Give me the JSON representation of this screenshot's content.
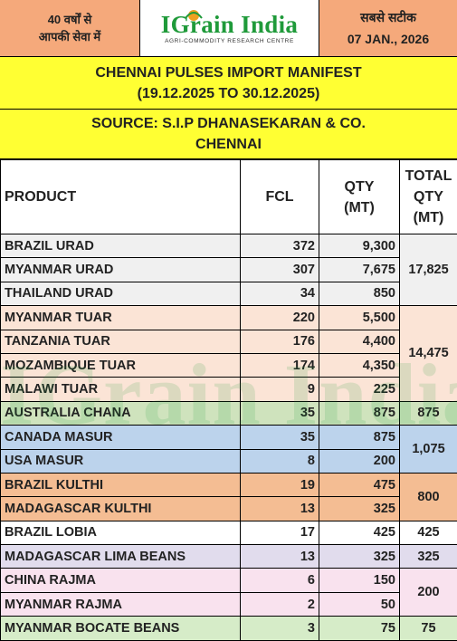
{
  "header": {
    "left_line1": "40 वर्षों से",
    "left_line2": "आपकी सेवा में",
    "logo_text": "IGrain India",
    "logo_sub": "AGRI-COMMODITY RESEARCH CENTRE",
    "right_line1": "सबसे सटीक",
    "right_date": "07 JAN., 2026"
  },
  "title": {
    "line1": "CHENNAI PULSES IMPORT MANIFEST",
    "line2": "(19.12.2025 TO 30.12.2025)"
  },
  "source": {
    "line1": "SOURCE: S.I.P DHANASEKARAN & CO.",
    "line2": "CHENNAI"
  },
  "table": {
    "headers": {
      "product": "PRODUCT",
      "fcl": "FCL",
      "qty_line1": "QTY",
      "qty_line2": "(MT)",
      "total_line1": "TOTAL",
      "total_line2": "QTY",
      "total_line3": "(MT)"
    },
    "rows": [
      {
        "product": "BRAZIL URAD",
        "fcl": "372",
        "qty": "9,300"
      },
      {
        "product": "MYANMAR URAD",
        "fcl": "307",
        "qty": "7,675"
      },
      {
        "product": "THAILAND URAD",
        "fcl": "34",
        "qty": "850"
      },
      {
        "product": "MYANMAR TUAR",
        "fcl": "220",
        "qty": "5,500"
      },
      {
        "product": "TANZANIA TUAR",
        "fcl": "176",
        "qty": "4,400"
      },
      {
        "product": "MOZAMBIQUE TUAR",
        "fcl": "174",
        "qty": "4,350"
      },
      {
        "product": "MALAWI TUAR",
        "fcl": "9",
        "qty": "225"
      },
      {
        "product": "AUSTRALIA CHANA",
        "fcl": "35",
        "qty": "875"
      },
      {
        "product": "CANADA MASUR",
        "fcl": "35",
        "qty": "875"
      },
      {
        "product": "USA MASUR",
        "fcl": "8",
        "qty": "200"
      },
      {
        "product": "BRAZIL KULTHI",
        "fcl": "19",
        "qty": "475"
      },
      {
        "product": "MADAGASCAR KULTHI",
        "fcl": "13",
        "qty": "325"
      },
      {
        "product": "BRAZIL LOBIA",
        "fcl": "17",
        "qty": "425"
      },
      {
        "product": "MADAGASCAR LIMA BEANS",
        "fcl": "13",
        "qty": "325"
      },
      {
        "product": "CHINA RAJMA",
        "fcl": "6",
        "qty": "150"
      },
      {
        "product": "MYANMAR RAJMA",
        "fcl": "2",
        "qty": "50"
      },
      {
        "product": "MYANMAR BOCATE BEANS",
        "fcl": "3",
        "qty": "75"
      }
    ],
    "totals": {
      "urad": "17,825",
      "tuar": "14,475",
      "chana": "875",
      "masur": "1,075",
      "kulthi": "800",
      "lobia": "425",
      "lima": "325",
      "rajma": "200",
      "bocate": "75"
    }
  },
  "watermark": "IGrain India",
  "colors": {
    "header_orange": "#f5a97b",
    "title_yellow": "#ffff33",
    "logo_green": "#1f9a3a"
  }
}
